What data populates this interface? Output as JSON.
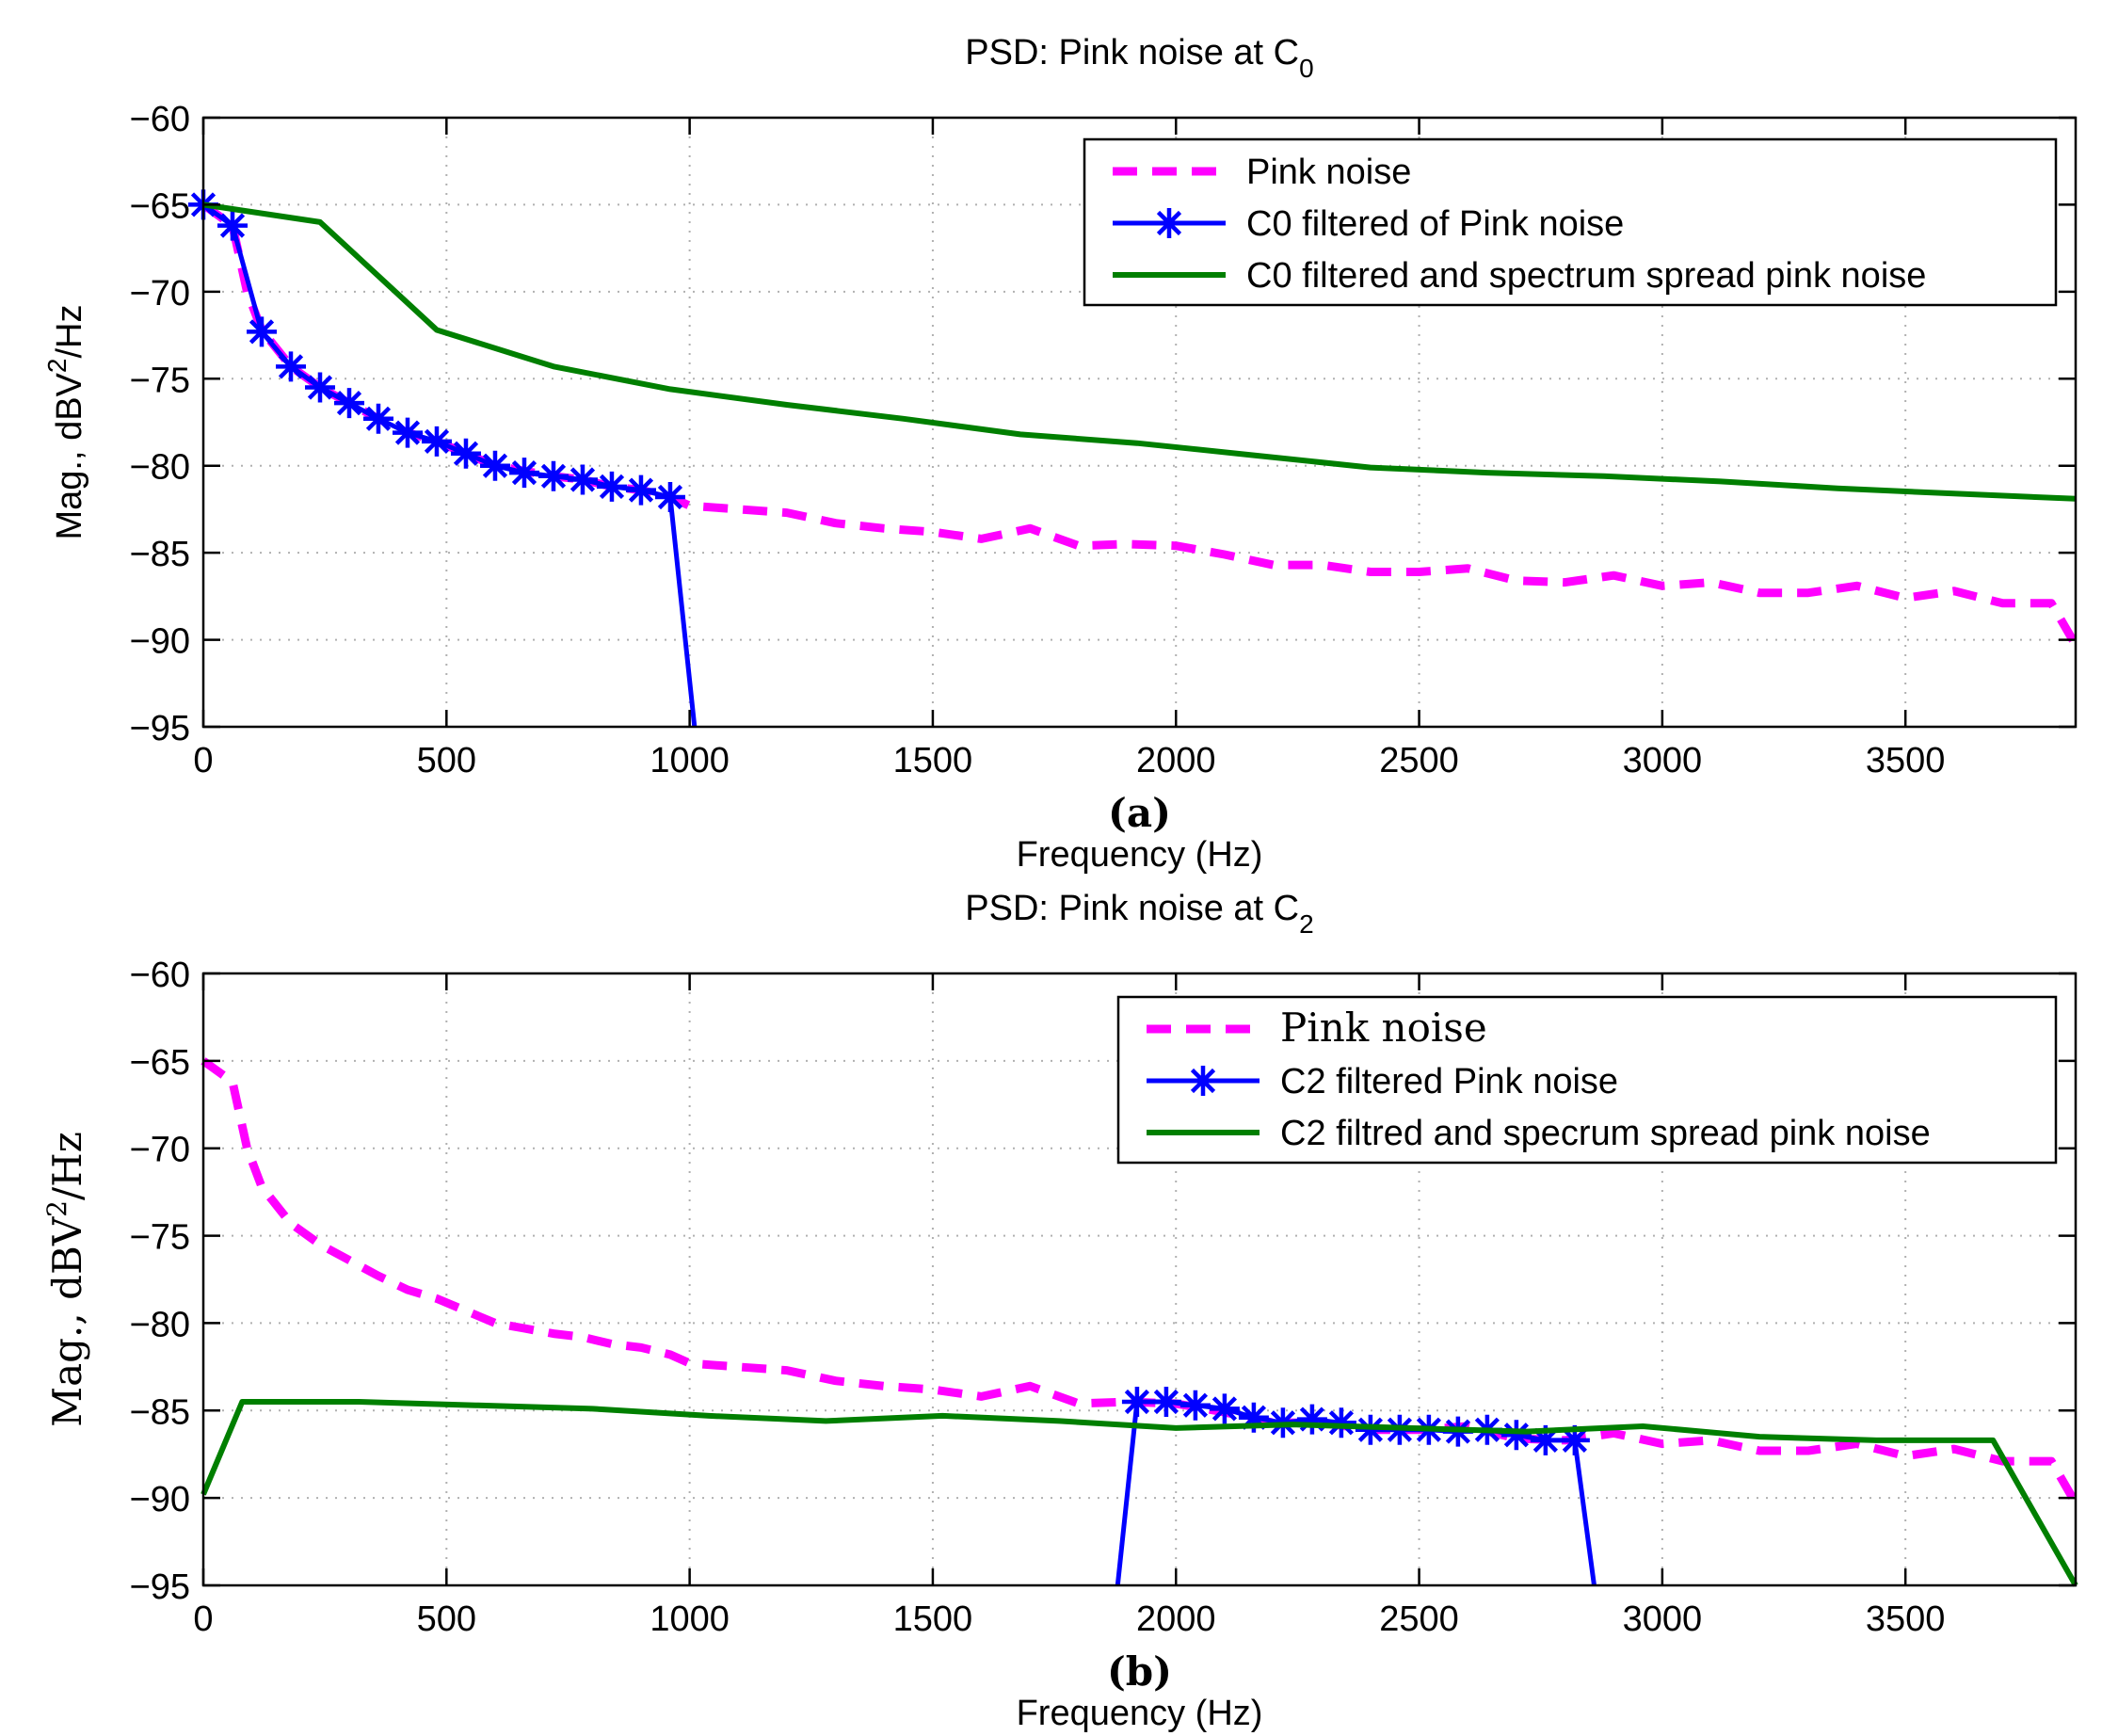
{
  "colors": {
    "pink": "#ff00ff",
    "blue": "#0000ff",
    "green": "#007f00",
    "axis": "#000000",
    "grid": "#b0b0b0"
  },
  "chart_data": [
    {
      "type": "line",
      "panel_label": "(a)",
      "title": "PSD: Pink noise at C",
      "title_sub": "0",
      "xlabel": "Frequency (Hz)",
      "ylabel": "Mag., dBV",
      "ylabel_sup": "2",
      "ylabel_suffix": "/Hz",
      "xlim": [
        0,
        3850
      ],
      "ylim": [
        -95,
        -60
      ],
      "xticks": [
        0,
        500,
        1000,
        1500,
        2000,
        2500,
        3000,
        3500
      ],
      "yticks": [
        -60,
        -65,
        -70,
        -75,
        -80,
        -85,
        -90,
        -95
      ],
      "grid": true,
      "legend_position": "top-right",
      "series": [
        {
          "name": "Pink noise",
          "style": "dashed",
          "color": "#ff00ff",
          "x": [
            0,
            60,
            90,
            120,
            180,
            240,
            300,
            360,
            420,
            480,
            540,
            600,
            660,
            720,
            780,
            840,
            900,
            960,
            1000,
            1100,
            1200,
            1300,
            1400,
            1500,
            1600,
            1700,
            1800,
            1900,
            2000,
            2100,
            2200,
            2300,
            2400,
            2500,
            2600,
            2700,
            2800,
            2900,
            3000,
            3100,
            3200,
            3300,
            3400,
            3500,
            3600,
            3700,
            3800,
            3850
          ],
          "y": [
            -65,
            -66.2,
            -70,
            -72.2,
            -74.3,
            -75.5,
            -76.4,
            -77.3,
            -78.1,
            -78.6,
            -79.3,
            -80,
            -80.3,
            -80.6,
            -80.8,
            -81.2,
            -81.4,
            -81.8,
            -82.3,
            -82.5,
            -82.7,
            -83.3,
            -83.6,
            -83.8,
            -84.2,
            -83.6,
            -84.6,
            -84.5,
            -84.6,
            -85.1,
            -85.7,
            -85.7,
            -86.1,
            -86.1,
            -85.9,
            -86.6,
            -86.7,
            -86.3,
            -86.9,
            -86.7,
            -87.3,
            -87.3,
            -86.9,
            -87.6,
            -87.2,
            -87.9,
            -87.9,
            -90.3
          ]
        },
        {
          "name": "C0 filtered of Pink noise",
          "style": "solid-asterisk",
          "color": "#0000ff",
          "x": [
            0,
            60,
            120,
            180,
            240,
            300,
            360,
            420,
            480,
            540,
            600,
            660,
            720,
            780,
            840,
            900,
            960,
            1010
          ],
          "y": [
            -65,
            -66.2,
            -72.3,
            -74.3,
            -75.5,
            -76.4,
            -77.3,
            -78.1,
            -78.6,
            -79.3,
            -80,
            -80.4,
            -80.6,
            -80.8,
            -81.2,
            -81.4,
            -81.8,
            -95
          ],
          "markers": [
            true,
            true,
            true,
            true,
            true,
            true,
            true,
            true,
            true,
            true,
            true,
            true,
            true,
            true,
            true,
            true,
            true,
            false
          ]
        },
        {
          "name": "C0 filtered and spectrum spread pink noise",
          "style": "solid",
          "color": "#007f00",
          "x": [
            0,
            240,
            480,
            720,
            960,
            1200,
            1440,
            1680,
            1920,
            2160,
            2400,
            2640,
            2880,
            3120,
            3360,
            3600,
            3850
          ],
          "y": [
            -65,
            -66,
            -72.2,
            -74.3,
            -75.6,
            -76.5,
            -77.3,
            -78.2,
            -78.7,
            -79.4,
            -80.1,
            -80.4,
            -80.6,
            -80.9,
            -81.3,
            -81.6,
            -81.9
          ]
        }
      ]
    },
    {
      "type": "line",
      "panel_label": "(b)",
      "title": "PSD: Pink noise at C",
      "title_sub": "2",
      "xlabel": "Frequency (Hz)",
      "ylabel": "Mag., dBV",
      "ylabel_sup": "2",
      "ylabel_suffix": "/Hz",
      "xlim": [
        0,
        3850
      ],
      "ylim": [
        -95,
        -60
      ],
      "xticks": [
        0,
        500,
        1000,
        1500,
        2000,
        2500,
        3000,
        3500
      ],
      "yticks": [
        -60,
        -65,
        -70,
        -75,
        -80,
        -85,
        -90,
        -95
      ],
      "grid": true,
      "legend_position": "top-right",
      "series": [
        {
          "name": "Pink noise",
          "style": "dashed",
          "color": "#ff00ff",
          "x": [
            0,
            60,
            90,
            120,
            180,
            240,
            300,
            360,
            420,
            480,
            540,
            600,
            660,
            720,
            780,
            840,
            900,
            960,
            1000,
            1100,
            1200,
            1300,
            1400,
            1500,
            1600,
            1700,
            1800,
            1900,
            2000,
            2100,
            2200,
            2300,
            2400,
            2500,
            2600,
            2700,
            2800,
            2900,
            3000,
            3100,
            3200,
            3300,
            3400,
            3500,
            3600,
            3700,
            3800,
            3850
          ],
          "y": [
            -65,
            -66.2,
            -70,
            -72.2,
            -74.3,
            -75.5,
            -76.4,
            -77.3,
            -78.1,
            -78.6,
            -79.3,
            -80,
            -80.3,
            -80.6,
            -80.8,
            -81.2,
            -81.4,
            -81.8,
            -82.3,
            -82.5,
            -82.7,
            -83.3,
            -83.6,
            -83.8,
            -84.2,
            -83.6,
            -84.6,
            -84.5,
            -84.6,
            -85.1,
            -85.7,
            -85.7,
            -86.1,
            -86.1,
            -85.9,
            -86.6,
            -86.7,
            -86.3,
            -86.9,
            -86.7,
            -87.3,
            -87.3,
            -86.9,
            -87.6,
            -87.2,
            -87.9,
            -87.9,
            -90.3
          ]
        },
        {
          "name": "C2 filtered Pink noise",
          "style": "solid-asterisk",
          "color": "#0000ff",
          "x": [
            1880,
            1920,
            1980,
            2040,
            2100,
            2160,
            2220,
            2280,
            2340,
            2400,
            2460,
            2520,
            2580,
            2640,
            2700,
            2760,
            2820,
            2860
          ],
          "y": [
            -95,
            -84.5,
            -84.5,
            -84.7,
            -84.9,
            -85.4,
            -85.7,
            -85.5,
            -85.7,
            -86.1,
            -86.1,
            -86.1,
            -86.2,
            -86.1,
            -86.4,
            -86.7,
            -86.7,
            -95
          ],
          "markers": [
            false,
            true,
            true,
            true,
            true,
            true,
            true,
            true,
            true,
            true,
            true,
            true,
            true,
            true,
            true,
            true,
            true,
            false
          ]
        },
        {
          "name": "C2 filtred and specrum spread pink noise",
          "style": "solid",
          "color": "#007f00",
          "x": [
            0,
            80,
            320,
            560,
            800,
            1040,
            1280,
            1520,
            1760,
            2000,
            2240,
            2480,
            2720,
            2960,
            3200,
            3440,
            3680,
            3850
          ],
          "y": [
            -89.8,
            -84.5,
            -84.5,
            -84.7,
            -84.9,
            -85.3,
            -85.6,
            -85.3,
            -85.6,
            -86,
            -85.8,
            -86,
            -86.2,
            -85.9,
            -86.5,
            -86.7,
            -86.7,
            -95
          ]
        }
      ]
    }
  ]
}
